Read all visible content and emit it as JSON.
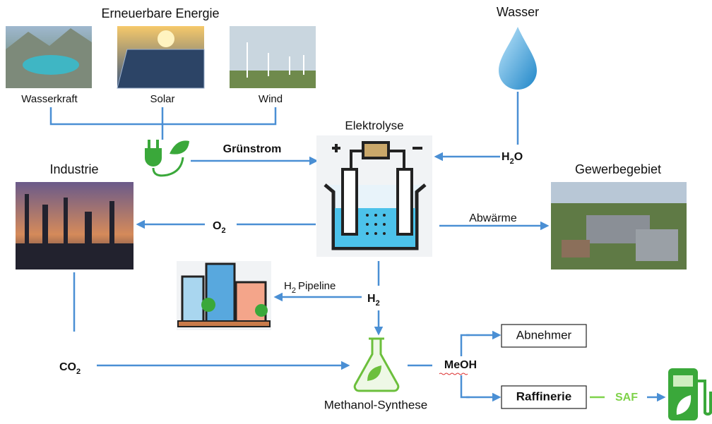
{
  "renewables": {
    "title": "Erneuerbare Energie",
    "sources": [
      "Wasserkraft",
      "Solar",
      "Wind"
    ]
  },
  "water": "Wasser",
  "electrolysis": "Elektrolyse",
  "green_power": "Grünstrom",
  "h2o": {
    "base": "H",
    "sub": "2",
    "tail": "O"
  },
  "industry": "Industrie",
  "commercial_area": "Gewerbegebiet",
  "o2": {
    "base": "O",
    "sub": "2"
  },
  "waste_heat": "Abwärme",
  "pipeline": {
    "base": "H",
    "sub": "2",
    "tail": "Pipeline"
  },
  "h2": {
    "base": "H",
    "sub": "2"
  },
  "co2": {
    "base": "CO",
    "sub": "2"
  },
  "meoh": "MeOH",
  "buyer": "Abnehmer",
  "refinery": "Raffinerie",
  "saf": "SAF",
  "methanol_synthesis": "Methanol-Synthese"
}
